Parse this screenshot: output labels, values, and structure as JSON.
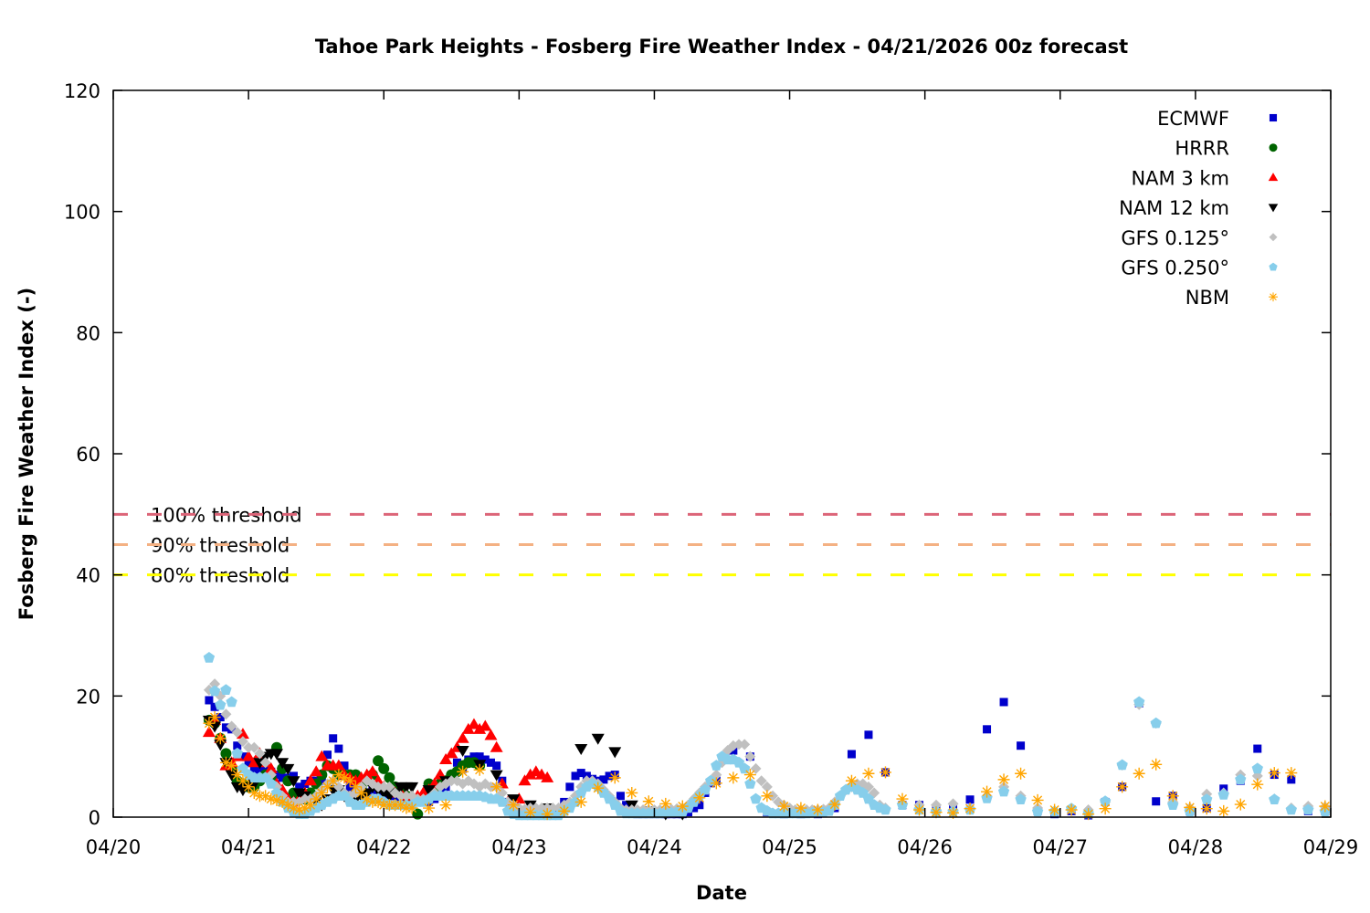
{
  "chart_data": {
    "type": "scatter",
    "title": "Tahoe Park Heights - Fosberg Fire Weather Index - 04/21/2026 00z forecast",
    "xlabel": "Date",
    "ylabel": "Fosberg Fire Weather Index (-)",
    "xlim": [
      "2026-04-20 00:00",
      "2026-04-29 00:00"
    ],
    "ylim": [
      0,
      120
    ],
    "x_ticks": [
      "04/20",
      "04/21",
      "04/22",
      "04/23",
      "04/24",
      "04/25",
      "04/26",
      "04/27",
      "04/28",
      "04/29"
    ],
    "y_ticks": [
      0,
      20,
      40,
      60,
      80,
      100,
      120
    ],
    "grid": false,
    "legend_placement": "top-right",
    "thresholds": [
      {
        "label": "100% threshold",
        "value": 50,
        "color": "#dc6478"
      },
      {
        "label": "90% threshold",
        "value": 45,
        "color": "#f4b183"
      },
      {
        "label": "80% threshold",
        "value": 40,
        "color": "#ffff00"
      }
    ],
    "series": [
      {
        "name": "ECMWF",
        "marker": "square",
        "color": "#0000cc",
        "segments": [
          {
            "start": "2026-04-20 17:00",
            "step_hours": 1,
            "values": [
              19.3,
              18.2,
              16.5,
              14.8,
              14.5,
              11.8,
              10,
              9,
              8,
              7.8,
              8,
              7.5,
              7,
              6.5,
              6.5,
              6.8,
              5,
              5.5,
              6,
              6,
              6,
              10.3,
              13,
              11.3,
              8.5,
              5,
              4.5,
              4,
              4,
              4.5,
              4.5,
              4,
              3.5,
              3.5,
              3,
              3,
              3,
              2.5,
              2.5,
              2.5,
              3,
              4,
              5,
              6.5,
              9,
              8,
              9.5,
              10,
              10,
              9.5,
              9,
              8.5,
              6,
              2.5,
              1,
              0.5,
              0.3,
              0.3,
              0.3,
              0.3,
              0.3,
              0.3,
              0.5,
              2.5,
              5,
              6.8,
              7.3,
              6.8,
              6.3,
              6,
              6.2,
              6.8,
              7,
              3.5,
              2,
              1,
              0.5,
              0.5,
              0.5,
              0.5,
              0.5,
              0.5,
              0.5,
              0.5,
              0.5,
              0.8,
              1.5,
              2,
              4,
              5.6,
              6
            ]
          },
          {
            "start": "2026-04-24 14:00",
            "step_hours": 3,
            "values": [
              11,
              10,
              0.8,
              0.5,
              0.5,
              0.5,
              1.5,
              10.4,
              13.6,
              7.4,
              2,
              2,
              1.5,
              1.5,
              2.9,
              14.5,
              19,
              11.8,
              1,
              0.5,
              1,
              0.3,
              2.5,
              5,
              18.8,
              2.6,
              3.5,
              1,
              1.5,
              4.7,
              6,
              11.3,
              7,
              6.2,
              1,
              1
            ]
          }
        ]
      },
      {
        "name": "HRRR",
        "marker": "circle",
        "color": "#006400",
        "segments": [
          {
            "start": "2026-04-20 17:00",
            "step_hours": 1,
            "values": [
              16,
              15.5,
              13,
              10.5,
              8,
              6,
              5.5,
              5,
              5,
              6,
              7,
              6.5,
              11.5,
              8,
              6,
              4,
              3,
              3,
              4,
              5.5,
              7,
              8.5,
              8,
              7,
              7,
              7,
              7,
              5,
              6,
              7,
              9.3,
              8,
              6.5,
              5,
              4,
              3.5,
              2.5,
              0.5,
              3,
              5.5,
              5,
              5.5,
              6,
              7,
              7.5,
              8.5,
              9,
              9,
              8.5
            ]
          }
        ]
      },
      {
        "name": "NAM 3 km",
        "marker": "triangle-up",
        "color": "#ff0000",
        "segments": [
          {
            "start": "2026-04-20 17:00",
            "step_hours": 1,
            "values": [
              14,
              16,
              13,
              8.5,
              9,
              10,
              13.7,
              10,
              9,
              10.5,
              9,
              8,
              5.5,
              4.5,
              3,
              2.5,
              3,
              4,
              6,
              7.5,
              10,
              8.5,
              8.5,
              8.5,
              7,
              6.5,
              6,
              6.5,
              7,
              7.5,
              6,
              5,
              4.5,
              4,
              4,
              3.5,
              3.5,
              3.5,
              4,
              4.5,
              5.5,
              7,
              9.5,
              10.5,
              11.5,
              13,
              14.5,
              15.3,
              14.5,
              15,
              13.5,
              11.5,
              5.5,
              2.5,
              1.5,
              3,
              6,
              7,
              7.5,
              7,
              6.5
            ]
          }
        ]
      },
      {
        "name": "NAM 12 km",
        "marker": "triangle-down",
        "color": "#000000",
        "segments": [
          {
            "start": "2026-04-20 17:00",
            "step_hours": 1,
            "values": [
              16,
              15,
              12,
              9,
              7,
              5,
              4.5,
              5,
              5.5,
              9,
              10,
              10.5,
              10.5,
              9,
              8,
              6,
              4,
              3.5,
              3,
              2.5,
              2,
              3,
              4.5,
              4.5,
              3.5,
              3.5,
              3,
              3.5,
              4,
              5,
              4.5,
              4,
              3.5,
              4,
              5,
              5,
              5
            ]
          },
          {
            "start": "2026-04-22 08:00",
            "step_hours": 3,
            "values": [
              4.5,
              6,
              11,
              8.7,
              7,
              3,
              2,
              1.5,
              1,
              11.3,
              13,
              10.8,
              2,
              1,
              0.5,
              0.5
            ]
          }
        ]
      },
      {
        "name": "GFS 0.125°",
        "marker": "diamond",
        "color": "#c0c0c0",
        "segments": [
          {
            "start": "2026-04-20 17:00",
            "step_hours": 1,
            "values": [
              21,
              22,
              20,
              17,
              15,
              14,
              12.5,
              11.5,
              11.5,
              10.5,
              9,
              7,
              5,
              3.5,
              2.5,
              2.5,
              2.5,
              3,
              3,
              3.5,
              4.5,
              5.5,
              6,
              5,
              4,
              3.5,
              4,
              5,
              6,
              5.5,
              5,
              5,
              5,
              4,
              3.5,
              3.5,
              3.5,
              3,
              3,
              3,
              4,
              5,
              5.5,
              6,
              6,
              5.5,
              6,
              5.5,
              5,
              5.5,
              5,
              5,
              4,
              2.5,
              2,
              1.5,
              1.3,
              1.5,
              1.5,
              1.5,
              1.5,
              1.5,
              1.5,
              2,
              2.5,
              3.5,
              5,
              6,
              6,
              5.5,
              4.5,
              3.5,
              2.5,
              1.5,
              1.2,
              1.2,
              1.2,
              1.2,
              1.2,
              1.2,
              1.2,
              1.3,
              1.3,
              1.4,
              1.5,
              2,
              3,
              4,
              5,
              6,
              7,
              9,
              11,
              11.8,
              12,
              12,
              10,
              8,
              6,
              5,
              3.5,
              2.5,
              2,
              1.5,
              1.2,
              1.2,
              1.2,
              1.2,
              1.2,
              1.3,
              1.5,
              2.5,
              3.5,
              4.5,
              5,
              5.5,
              5.5,
              5,
              4,
              2,
              1.5
            ]
          },
          {
            "start": "2026-04-25 20:00",
            "step_hours": 3,
            "values": [
              2.2,
              2,
              2,
              2.2,
              1.5,
              3.5,
              5,
              3.5,
              1.5,
              1,
              1.3,
              1.2,
              2.5,
              8.6,
              18.6,
              15.5,
              2.5,
              1.5,
              3.8,
              4,
              7,
              6.8,
              3,
              1.5,
              1.8,
              1.7
            ]
          }
        ]
      },
      {
        "name": "GFS 0.250°",
        "marker": "pentagon",
        "color": "#87ceeb",
        "segments": [
          {
            "start": "2026-04-20 17:00",
            "step_hours": 1,
            "values": [
              26.3,
              20.8,
              18.5,
              21,
              19,
              10.5,
              8,
              7,
              6.5,
              6.5,
              6.5,
              5.5,
              4,
              2.5,
              1.5,
              0.8,
              0.5,
              0.5,
              1,
              1.5,
              2,
              2.5,
              3,
              3.5,
              3.5,
              2.5,
              2,
              2,
              2.5,
              3,
              3,
              2.5,
              2,
              2,
              2,
              2,
              2,
              2.5,
              2.5,
              3,
              3.5,
              3.5,
              3.5,
              3.5,
              3.5,
              3.5,
              3.5,
              3.5,
              3.5,
              3.3,
              3,
              3,
              2.5,
              1,
              0.5,
              0.3,
              0.3,
              0.3,
              0.3,
              0.3,
              0.3,
              0.3,
              0.3,
              1,
              1.5,
              2.5,
              4,
              5,
              5.5,
              5,
              4,
              3,
              2,
              1,
              0.6,
              0.6,
              0.6,
              0.6,
              0.6,
              0.6,
              0.6,
              0.7,
              0.7,
              0.8,
              0.8,
              1.5,
              2.5,
              3.5,
              4.5,
              6,
              8.5,
              10,
              9.5,
              9.5,
              9,
              8,
              5.5,
              3,
              1.5,
              1,
              0.6,
              0.6,
              0.6,
              0.6,
              0.6,
              0.6,
              0.6,
              0.7,
              0.7,
              0.8,
              1,
              2,
              3.5,
              4.5,
              5,
              4.5,
              4,
              3,
              2,
              1.5,
              1.2
            ]
          },
          {
            "start": "2026-04-25 20:00",
            "step_hours": 3,
            "values": [
              2,
              1.2,
              0.9,
              0.9,
              1.2,
              3.1,
              4.2,
              2.9,
              0.9,
              0.9,
              1.4,
              0.6,
              2.6,
              8.6,
              19,
              15.5,
              2,
              0.9,
              2.9,
              3.7,
              6.2,
              8,
              2.9,
              1.2,
              1.2,
              0.9
            ]
          }
        ]
      },
      {
        "name": "NBM",
        "marker": "asterisk",
        "color": "#ffa500",
        "segments": [
          {
            "start": "2026-04-20 17:00",
            "step_hours": 1,
            "values": [
              15.5,
              16.5,
              13,
              9,
              8.5,
              7,
              6,
              5,
              4,
              3.5,
              3.5,
              3,
              2.8,
              2.5,
              2,
              1.5,
              1.2,
              1.5,
              2,
              3,
              4,
              5,
              6,
              7,
              6.5,
              6,
              5,
              4,
              3,
              2.5,
              2.5,
              2,
              2,
              2,
              2,
              1.5,
              1.5
            ]
          },
          {
            "start": "2026-04-22 08:00",
            "step_hours": 3,
            "values": [
              1.5,
              2,
              7.5,
              7.8,
              5,
              2,
              0.8,
              0.5,
              1,
              2.5,
              4.8,
              6.5,
              4,
              2.6,
              2.2,
              1.8,
              3.2,
              5.6,
              6.5,
              7,
              3.5,
              1.8,
              1.5,
              1.2,
              2.1,
              6,
              7.2,
              7.4,
              3,
              1.2,
              0.8,
              0.7,
              1.4,
              4.2,
              6.2,
              7.2,
              2.8,
              1.2,
              1.2,
              0.5,
              1.4,
              5,
              7.2,
              8.7,
              3.5,
              1.6,
              1.4,
              1,
              2.1,
              5.4,
              7.3,
              7.3,
              null,
              1.8
            ]
          }
        ]
      }
    ]
  }
}
